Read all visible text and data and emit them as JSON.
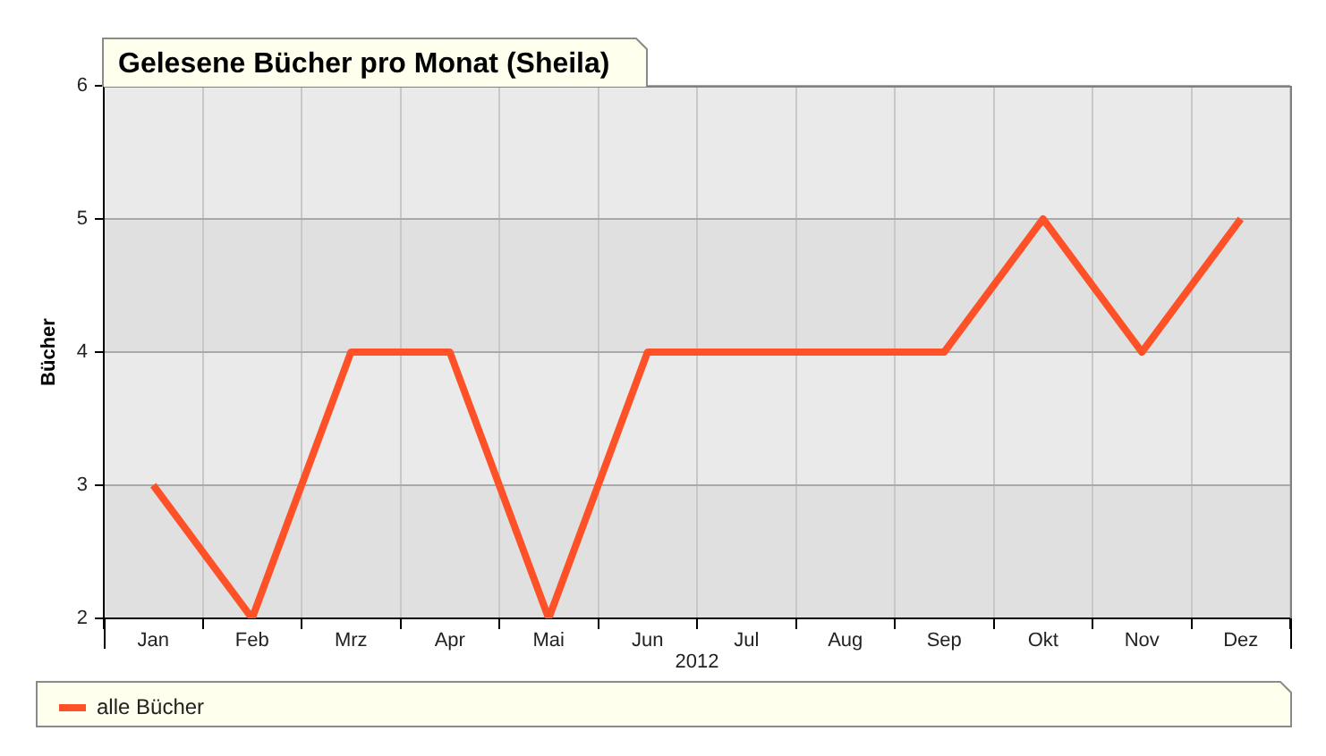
{
  "chart_data": {
    "type": "line",
    "title": "Gelesene Bücher pro Monat (Sheila)",
    "xlabel": "2012",
    "ylabel": "Bücher",
    "categories": [
      "Jan",
      "Feb",
      "Mrz",
      "Apr",
      "Mai",
      "Jun",
      "Jul",
      "Aug",
      "Sep",
      "Okt",
      "Nov",
      "Dez"
    ],
    "series": [
      {
        "name": "alle Bücher",
        "color": "#ff5128",
        "values": [
          3,
          2,
          4,
          4,
          2,
          4,
          4,
          4,
          4,
          5,
          4,
          5
        ]
      }
    ],
    "ylim": [
      2,
      6
    ],
    "yticks": [
      2,
      3,
      4,
      5,
      6
    ],
    "grid": true,
    "legend": "bottom"
  }
}
